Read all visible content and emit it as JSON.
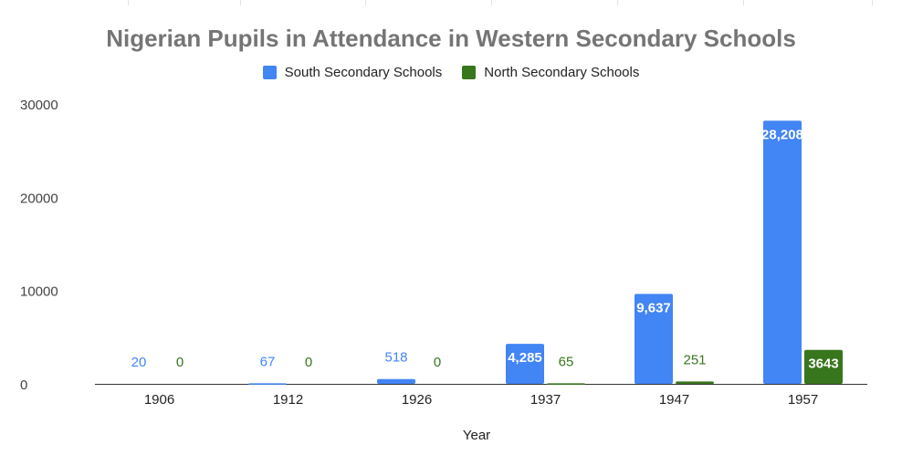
{
  "chart_data": {
    "type": "bar",
    "title": "Nigerian Pupils in Attendance in Western Secondary Schools",
    "xlabel": "Year",
    "ylabel": "",
    "categories": [
      "1906",
      "1912",
      "1926",
      "1937",
      "1947",
      "1957"
    ],
    "series": [
      {
        "name": "South Secondary Schools",
        "color": "#4285f4",
        "values": [
          20,
          67,
          518,
          4285,
          9637,
          28208
        ],
        "labels": [
          "20",
          "67",
          "518",
          "4,285",
          "9,637",
          "28,208"
        ]
      },
      {
        "name": "North Secondary Schools",
        "color": "#38761d",
        "values": [
          0,
          0,
          0,
          65,
          251,
          3643
        ],
        "labels": [
          "0",
          "0",
          "0",
          "65",
          "251",
          "3643"
        ]
      }
    ],
    "yticks": [
      "0",
      "10000",
      "20000",
      "30000"
    ],
    "ylim": [
      0,
      30000
    ],
    "grid": false,
    "legend_position": "top"
  }
}
